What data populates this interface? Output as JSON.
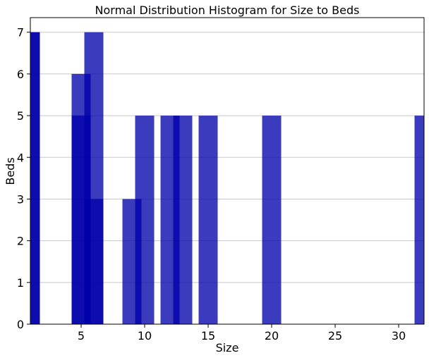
{
  "chart_data": {
    "type": "bar",
    "title": "Normal Distribution Histogram for Size to Beds",
    "xlabel": "Size",
    "ylabel": "Beds",
    "xlim": [
      1,
      32
    ],
    "ylim": [
      0,
      7.35
    ],
    "x_ticks": [
      5,
      10,
      15,
      20,
      25,
      30
    ],
    "y_ticks": [
      0,
      1,
      2,
      3,
      4,
      5,
      6,
      7
    ],
    "grid": "horizontal",
    "bar_color": "#0000aa",
    "bar_opacity": 0.77,
    "bar_width": 1.5,
    "bars": [
      {
        "x": 1,
        "value": 7
      },
      {
        "x": 1,
        "value": 7
      },
      {
        "x": 5,
        "value": 6
      },
      {
        "x": 5,
        "value": 5
      },
      {
        "x": 6,
        "value": 7
      },
      {
        "x": 6,
        "value": 3
      },
      {
        "x": 9,
        "value": 3
      },
      {
        "x": 10,
        "value": 5
      },
      {
        "x": 12,
        "value": 5
      },
      {
        "x": 13,
        "value": 5
      },
      {
        "x": 15,
        "value": 5
      },
      {
        "x": 20,
        "value": 5
      },
      {
        "x": 32,
        "value": 5
      }
    ]
  }
}
